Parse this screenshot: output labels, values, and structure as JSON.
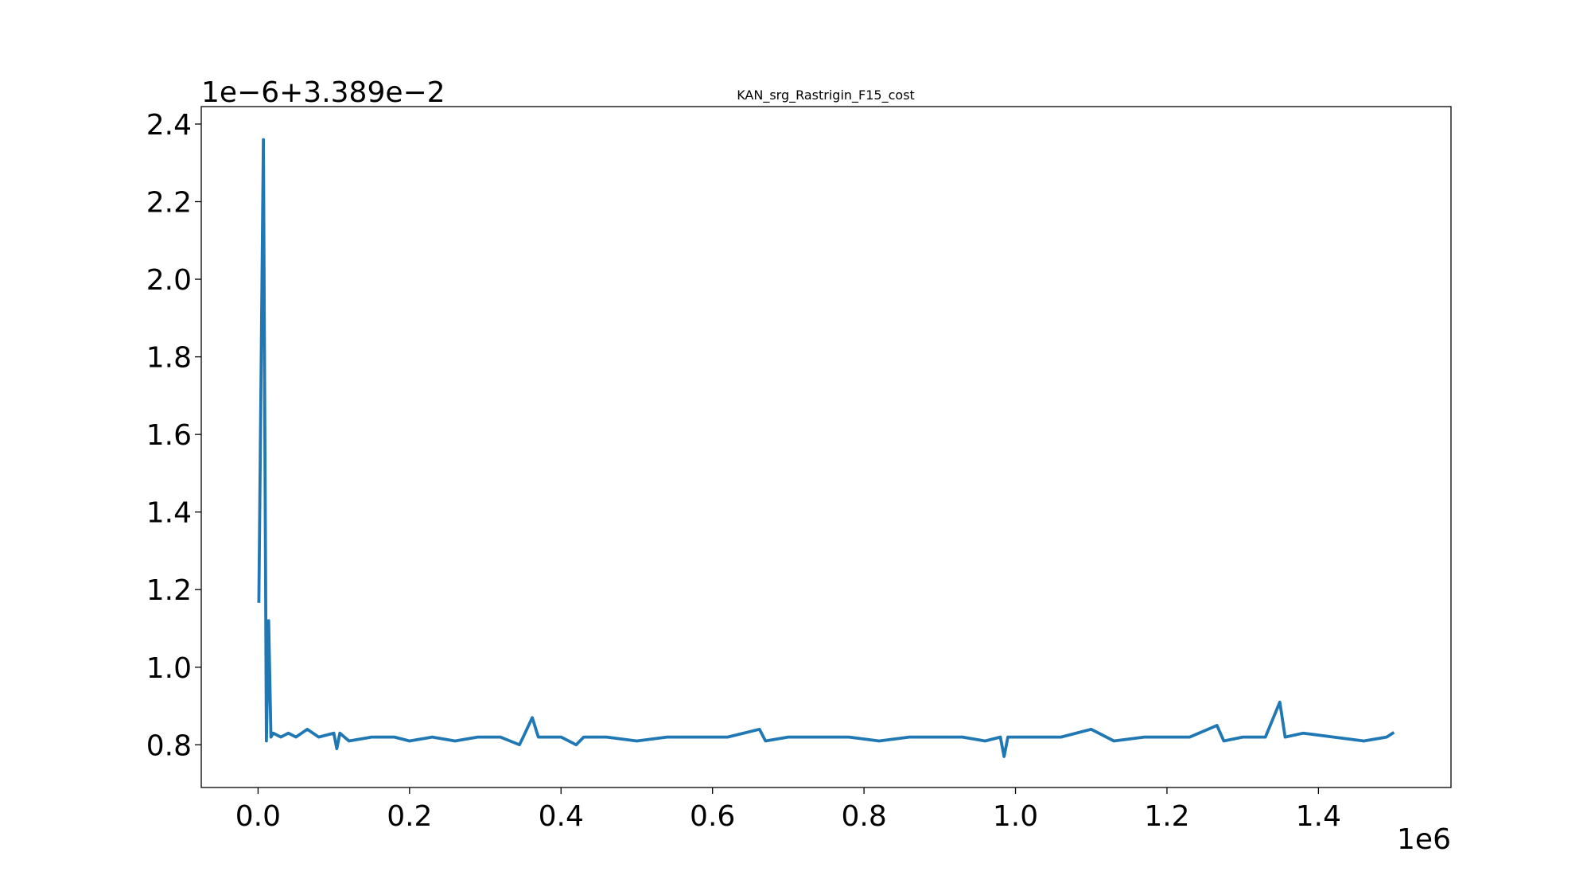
{
  "chart_data": {
    "type": "line",
    "title": "KAN_srg_Rastrigin_F15_cost",
    "xlabel": "",
    "ylabel": "",
    "x_offset_label": "1e6",
    "y_offset_label": "1e−6+3.389e−2",
    "xlim": [
      -75000,
      1575000
    ],
    "ylim": [
      0.69,
      2.445
    ],
    "xticks": [
      0,
      200000,
      400000,
      600000,
      800000,
      1000000,
      1200000,
      1400000
    ],
    "xtick_labels": [
      "0.0",
      "0.2",
      "0.4",
      "0.6",
      "0.8",
      "1.0",
      "1.2",
      "1.4"
    ],
    "yticks": [
      0.8,
      1.0,
      1.2,
      1.4,
      1.6,
      1.8,
      2.0,
      2.2,
      2.4
    ],
    "ytick_labels": [
      "0.8",
      "1.0",
      "1.2",
      "1.4",
      "1.6",
      "1.8",
      "2.0",
      "2.2",
      "2.4"
    ],
    "grid": false,
    "legend": "none",
    "series": [
      {
        "color": "#1f77b4",
        "x": [
          1000,
          7000,
          11000,
          14000,
          17000,
          20000,
          30000,
          40000,
          50000,
          65000,
          80000,
          100000,
          104000,
          108000,
          120000,
          150000,
          180000,
          200000,
          230000,
          260000,
          290000,
          320000,
          345000,
          350000,
          362000,
          370000,
          400000,
          420000,
          430000,
          460000,
          500000,
          540000,
          580000,
          620000,
          662000,
          670000,
          700000,
          740000,
          780000,
          820000,
          860000,
          900000,
          930000,
          960000,
          980000,
          985000,
          990000,
          1020000,
          1060000,
          1100000,
          1130000,
          1170000,
          1200000,
          1230000,
          1266000,
          1275000,
          1300000,
          1330000,
          1349000,
          1356000,
          1380000,
          1420000,
          1460000,
          1490000,
          1498000
        ],
        "y": [
          1.17,
          2.36,
          0.81,
          1.12,
          0.82,
          0.83,
          0.82,
          0.83,
          0.82,
          0.84,
          0.82,
          0.83,
          0.79,
          0.83,
          0.81,
          0.82,
          0.82,
          0.81,
          0.82,
          0.81,
          0.82,
          0.82,
          0.8,
          0.82,
          0.87,
          0.82,
          0.82,
          0.8,
          0.82,
          0.82,
          0.81,
          0.82,
          0.82,
          0.82,
          0.84,
          0.81,
          0.82,
          0.82,
          0.82,
          0.81,
          0.82,
          0.82,
          0.82,
          0.81,
          0.82,
          0.77,
          0.82,
          0.82,
          0.82,
          0.84,
          0.81,
          0.82,
          0.82,
          0.82,
          0.85,
          0.81,
          0.82,
          0.82,
          0.91,
          0.82,
          0.83,
          0.82,
          0.81,
          0.82,
          0.83
        ]
      }
    ]
  }
}
